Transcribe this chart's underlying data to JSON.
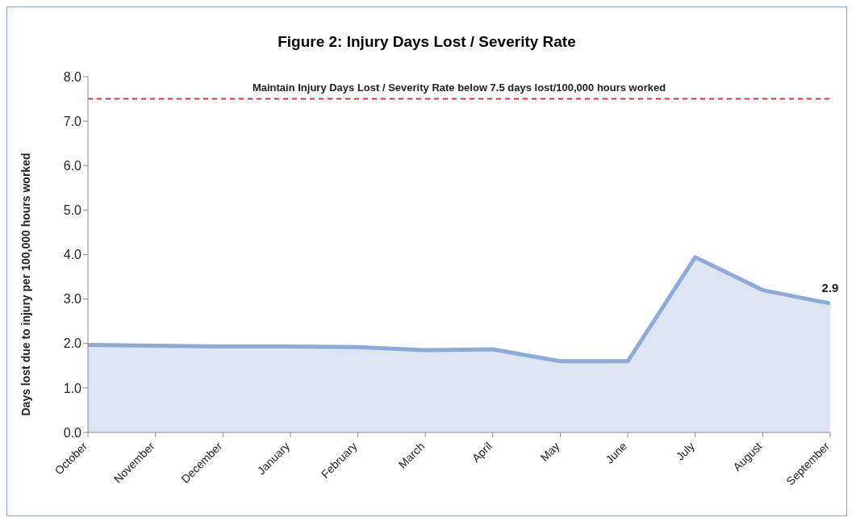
{
  "chart_data": {
    "type": "area",
    "title": "Figure 2: Injury Days Lost / Severity Rate",
    "ylabel": "Days lost due to injury per 100,000 hours worked",
    "categories": [
      "October",
      "November",
      "December",
      "January",
      "February",
      "March",
      "April",
      "May",
      "June",
      "July",
      "August",
      "September"
    ],
    "series": [
      {
        "color": "#8eaad6",
        "values": [
          1.97,
          1.95,
          1.93,
          1.93,
          1.92,
          1.85,
          1.87,
          1.6,
          1.6,
          3.94,
          3.2,
          2.9
        ],
        "value_labels": [
          null,
          null,
          null,
          null,
          null,
          null,
          null,
          null,
          null,
          null,
          null,
          "2.9"
        ]
      }
    ],
    "ylim": [
      0,
      8
    ],
    "yticks": [
      {
        "value": 0,
        "label": "0.0"
      },
      {
        "value": 1,
        "label": "1.0"
      },
      {
        "value": 2,
        "label": "2.0"
      },
      {
        "value": 3,
        "label": "3.0"
      },
      {
        "value": 4,
        "label": "4.0"
      },
      {
        "value": 5,
        "label": "5.0"
      },
      {
        "value": 6,
        "label": "6.0"
      },
      {
        "value": 7,
        "label": "7.0"
      },
      {
        "value": 8,
        "label": "8.0"
      }
    ],
    "ref_lines": [
      {
        "axis": "y",
        "value": 7.5,
        "label": "Maintain Injury Days Lost / Severity Rate below 7.5 days lost/100,000 hours worked",
        "color": "#e0303a",
        "line_style": "dashed"
      }
    ],
    "grid": false,
    "legend": false
  }
}
